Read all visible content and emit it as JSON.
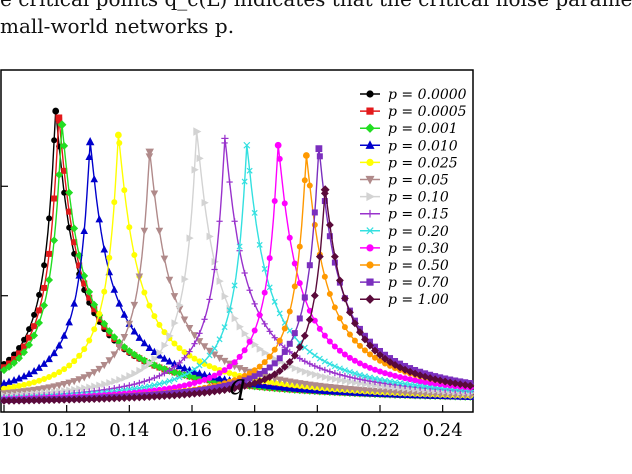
{
  "caption": {
    "line1": "e critical points q_c(L) indicates that the critical noise parame",
    "line2": "mall-world networks p."
  },
  "chart_data": {
    "type": "line",
    "xlabel": "q",
    "ylabel": "",
    "xlim": [
      0.1,
      0.25
    ],
    "ylim": [
      0,
      1
    ],
    "x_ticks": [
      "0.10",
      "0.12",
      "0.14",
      "0.16",
      "0.18",
      "0.20",
      "0.22",
      "0.24"
    ],
    "grid": false,
    "legend_position": "top-right",
    "series": [
      {
        "name": "p = 0.0000",
        "color": "#000000",
        "marker": "circle",
        "peak_q": 0.1165,
        "peak_y": 0.88
      },
      {
        "name": "p = 0.0005",
        "color": "#e31a1c",
        "marker": "square",
        "peak_q": 0.1175,
        "peak_y": 0.86
      },
      {
        "name": "p = 0.001",
        "color": "#22dd22",
        "marker": "diamond",
        "peak_q": 0.1185,
        "peak_y": 0.84
      },
      {
        "name": "p = 0.010",
        "color": "#0000cc",
        "marker": "triangle-up",
        "peak_q": 0.1275,
        "peak_y": 0.79
      },
      {
        "name": "p = 0.025",
        "color": "#ffff00",
        "marker": "circle",
        "peak_q": 0.1365,
        "peak_y": 0.81
      },
      {
        "name": "p = 0.05",
        "color": "#b08a8a",
        "marker": "triangle-down",
        "peak_q": 0.1465,
        "peak_y": 0.76
      },
      {
        "name": "p = 0.10",
        "color": "#d3d3d3",
        "marker": "triangle-right",
        "peak_q": 0.1615,
        "peak_y": 0.82
      },
      {
        "name": "p = 0.15",
        "color": "#9932cc",
        "marker": "plus",
        "peak_q": 0.1705,
        "peak_y": 0.8
      },
      {
        "name": "p = 0.20",
        "color": "#33e0e0",
        "marker": "x",
        "peak_q": 0.1775,
        "peak_y": 0.78
      },
      {
        "name": "p = 0.30",
        "color": "#ff00ff",
        "marker": "circle",
        "peak_q": 0.1875,
        "peak_y": 0.78
      },
      {
        "name": "p = 0.50",
        "color": "#ff9900",
        "marker": "circle",
        "peak_q": 0.1965,
        "peak_y": 0.75
      },
      {
        "name": "p = 0.70",
        "color": "#7b2fbe",
        "marker": "square",
        "peak_q": 0.2005,
        "peak_y": 0.77
      },
      {
        "name": "p = 1.00",
        "color": "#5a0a3a",
        "marker": "diamond",
        "peak_q": 0.2025,
        "peak_y": 0.65
      }
    ]
  }
}
